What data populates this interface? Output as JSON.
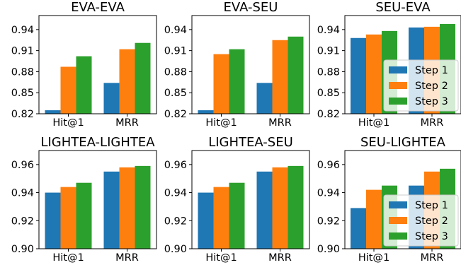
{
  "chart_data": [
    {
      "type": "bar",
      "title": "EVA-EVA",
      "categories": [
        "Hit@1",
        "MRR"
      ],
      "series": [
        {
          "name": "Step 1",
          "values": [
            0.825,
            0.864
          ]
        },
        {
          "name": "Step 2",
          "values": [
            0.887,
            0.912
          ]
        },
        {
          "name": "Step 3",
          "values": [
            0.902,
            0.921
          ]
        }
      ],
      "ylim": [
        0.82,
        0.96
      ],
      "yticks": [
        "0.82",
        "0.85",
        "0.88",
        "0.91",
        "0.94"
      ],
      "legend": false
    },
    {
      "type": "bar",
      "title": "EVA-SEU",
      "categories": [
        "Hit@1",
        "MRR"
      ],
      "series": [
        {
          "name": "Step 1",
          "values": [
            0.825,
            0.864
          ]
        },
        {
          "name": "Step 2",
          "values": [
            0.905,
            0.925
          ]
        },
        {
          "name": "Step 3",
          "values": [
            0.912,
            0.93
          ]
        }
      ],
      "ylim": [
        0.82,
        0.96
      ],
      "yticks": [
        "0.82",
        "0.85",
        "0.88",
        "0.91",
        "0.94"
      ],
      "legend": false
    },
    {
      "type": "bar",
      "title": "SEU-EVA",
      "categories": [
        "Hit@1",
        "MRR"
      ],
      "series": [
        {
          "name": "Step 1",
          "values": [
            0.928,
            0.943
          ]
        },
        {
          "name": "Step 2",
          "values": [
            0.933,
            0.944
          ]
        },
        {
          "name": "Step 3",
          "values": [
            0.938,
            0.948
          ]
        }
      ],
      "ylim": [
        0.82,
        0.96
      ],
      "yticks": [
        "0.82",
        "0.85",
        "0.88",
        "0.91",
        "0.94"
      ],
      "legend": true,
      "legend_position": "lower-right"
    },
    {
      "type": "bar",
      "title": "LIGHTEA-LIGHTEA",
      "categories": [
        "Hit@1",
        "MRR"
      ],
      "series": [
        {
          "name": "Step 1",
          "values": [
            0.94,
            0.955
          ]
        },
        {
          "name": "Step 2",
          "values": [
            0.944,
            0.958
          ]
        },
        {
          "name": "Step 3",
          "values": [
            0.947,
            0.959
          ]
        }
      ],
      "ylim": [
        0.9,
        0.97
      ],
      "yticks": [
        "0.90",
        "0.92",
        "0.94",
        "0.96"
      ],
      "legend": false
    },
    {
      "type": "bar",
      "title": "LIGHTEA-SEU",
      "categories": [
        "Hit@1",
        "MRR"
      ],
      "series": [
        {
          "name": "Step 1",
          "values": [
            0.94,
            0.955
          ]
        },
        {
          "name": "Step 2",
          "values": [
            0.944,
            0.958
          ]
        },
        {
          "name": "Step 3",
          "values": [
            0.947,
            0.959
          ]
        }
      ],
      "ylim": [
        0.9,
        0.97
      ],
      "yticks": [
        "0.90",
        "0.92",
        "0.94",
        "0.96"
      ],
      "legend": false
    },
    {
      "type": "bar",
      "title": "SEU-LIGHTEA",
      "categories": [
        "Hit@1",
        "MRR"
      ],
      "series": [
        {
          "name": "Step 1",
          "values": [
            0.929,
            0.945
          ]
        },
        {
          "name": "Step 2",
          "values": [
            0.942,
            0.955
          ]
        },
        {
          "name": "Step 3",
          "values": [
            0.945,
            0.957
          ]
        }
      ],
      "ylim": [
        0.9,
        0.97
      ],
      "yticks": [
        "0.90",
        "0.92",
        "0.94",
        "0.96"
      ],
      "legend": true,
      "legend_position": "lower-right"
    }
  ],
  "colors": {
    "Step 1": "#1f77b4",
    "Step 2": "#ff7f0e",
    "Step 3": "#2ca02c"
  }
}
